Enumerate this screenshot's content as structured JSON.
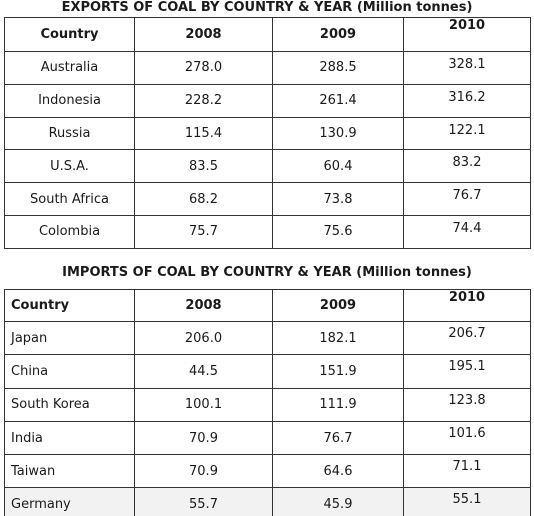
{
  "chart_data": [
    {
      "type": "table",
      "title": "EXPORTS OF COAL BY COUNTRY & YEAR (Million tonnes)",
      "columns": [
        "Country",
        "2008",
        "2009",
        "2010"
      ],
      "rows": [
        [
          "Australia",
          "278.0",
          "288.5",
          "328.1"
        ],
        [
          "Indonesia",
          "228.2",
          "261.4",
          "316.2"
        ],
        [
          "Russia",
          "115.4",
          "130.9",
          "122.1"
        ],
        [
          "U.S.A.",
          "83.5",
          "60.4",
          "83.2"
        ],
        [
          "South Africa",
          "68.2",
          "73.8",
          "76.7"
        ],
        [
          "Colombia",
          "75.7",
          "75.6",
          "74.4"
        ]
      ]
    },
    {
      "type": "table",
      "title": "IMPORTS OF COAL BY COUNTRY & YEAR (Million tonnes)",
      "columns": [
        "Country",
        "2008",
        "2009",
        "2010"
      ],
      "rows": [
        [
          "Japan",
          "206.0",
          "182.1",
          "206.7"
        ],
        [
          "China",
          "44.5",
          "151.9",
          "195.1"
        ],
        [
          "South Korea",
          "100.1",
          "111.9",
          "123.8"
        ],
        [
          "India",
          "70.9",
          "76.7",
          "101.6"
        ],
        [
          "Taiwan",
          "70.9",
          "64.6",
          "71.1"
        ],
        [
          "Germany",
          "55.7",
          "45.9",
          "55.1"
        ]
      ]
    }
  ]
}
